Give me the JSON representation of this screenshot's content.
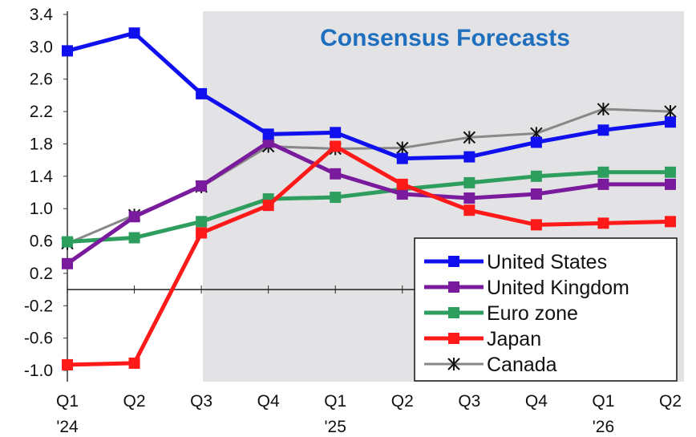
{
  "chart_data": {
    "type": "line",
    "title": "Consensus Forecasts",
    "xlabel": "",
    "ylabel": "",
    "ylim": [
      -1.0,
      3.4
    ],
    "y_ticks": [
      "3.4",
      "3.0",
      "2.6",
      "2.2",
      "1.8",
      "1.4",
      "1.0",
      "0.6",
      "0.2",
      "-0.2",
      "-0.6",
      "-1.0"
    ],
    "categories": [
      "Q1",
      "Q2",
      "Q3",
      "Q4",
      "Q1",
      "Q2",
      "Q3",
      "Q4",
      "Q1",
      "Q2"
    ],
    "year_labels": [
      "'24",
      "'25",
      "'26"
    ],
    "forecast_region_start_category": "Q3",
    "legend_position": "bottom-right",
    "grid": false,
    "series": [
      {
        "name": "United States",
        "color": "#1010ee",
        "marker": "square",
        "values": [
          2.95,
          3.17,
          2.42,
          1.92,
          1.94,
          1.62,
          1.64,
          1.82,
          1.97,
          2.07
        ]
      },
      {
        "name": "United Kingdom",
        "color": "#7a1a9c",
        "marker": "square",
        "values": [
          0.32,
          0.9,
          1.28,
          1.82,
          1.43,
          1.18,
          1.13,
          1.18,
          1.3,
          1.3
        ]
      },
      {
        "name": "Euro zone",
        "color": "#2e9e5e",
        "marker": "square",
        "values": [
          0.59,
          0.64,
          0.84,
          1.12,
          1.14,
          1.24,
          1.32,
          1.4,
          1.45,
          1.45
        ]
      },
      {
        "name": "Japan",
        "color": "#ff1a1a",
        "marker": "square",
        "values": [
          -0.93,
          -0.91,
          0.7,
          1.04,
          1.77,
          1.3,
          0.98,
          0.8,
          0.82,
          0.84
        ]
      },
      {
        "name": "Canada",
        "color": "#888888",
        "marker": "asterisk",
        "values": [
          0.57,
          0.92,
          1.27,
          1.77,
          1.74,
          1.75,
          1.88,
          1.93,
          2.23,
          2.2
        ]
      }
    ]
  }
}
